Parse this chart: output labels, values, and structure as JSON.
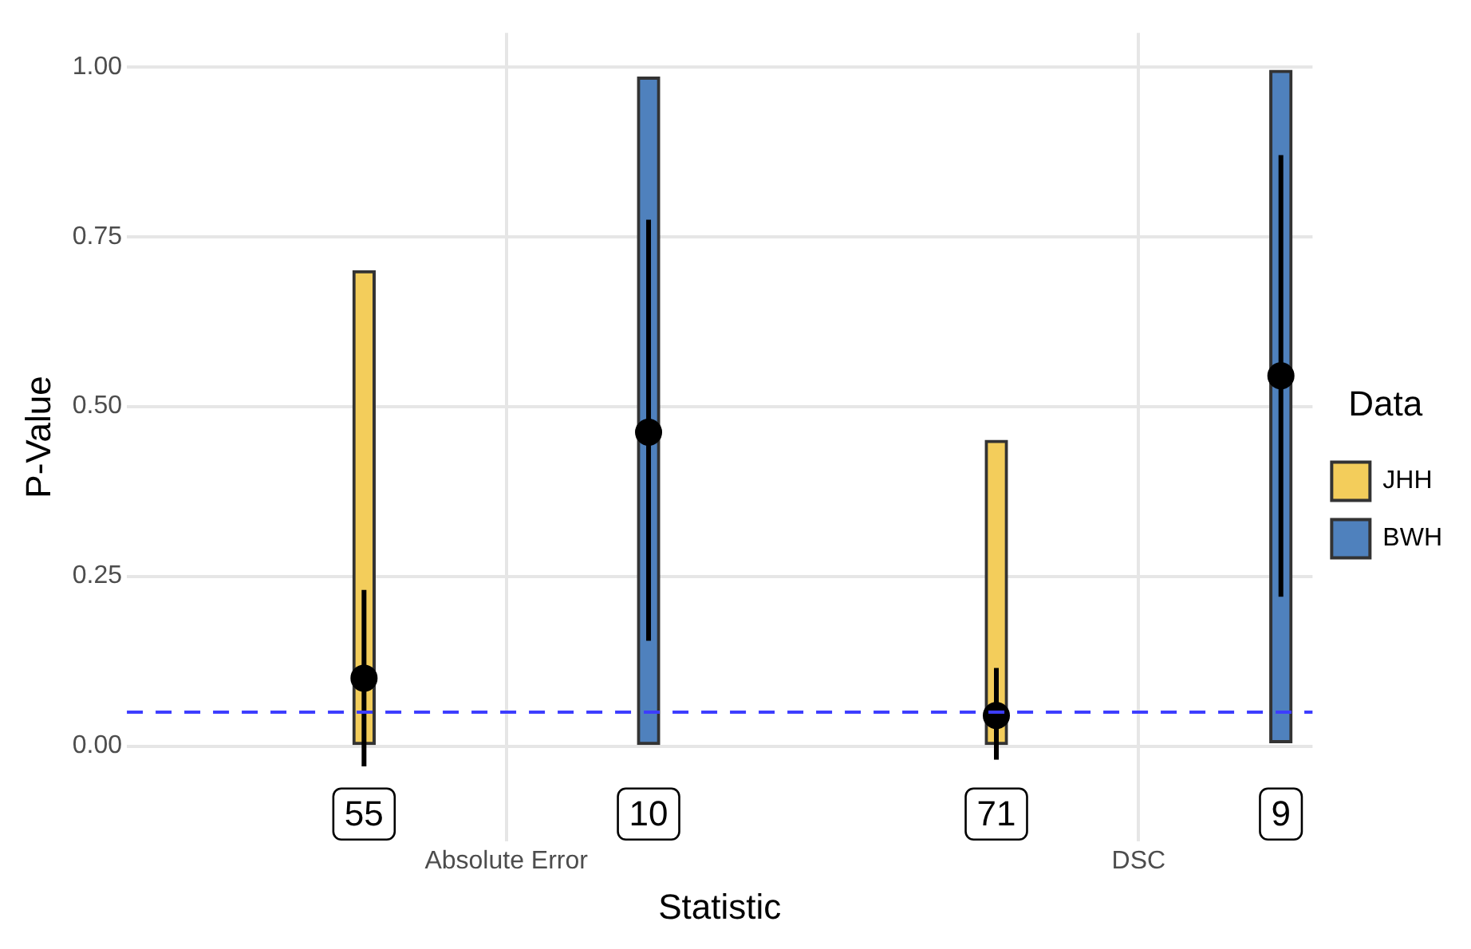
{
  "chart_data": {
    "type": "bar",
    "xlabel": "Statistic",
    "ylabel": "P-Value",
    "legend_title": "Data",
    "legend": "right",
    "grid": true,
    "categories": [
      "Absolute Error",
      "DSC"
    ],
    "ylim": [
      -0.14,
      1.05
    ],
    "yticks": [
      {
        "value": 0,
        "label": "0.00"
      },
      {
        "value": 0.25,
        "label": "0.25"
      },
      {
        "value": 0.5,
        "label": "0.50"
      },
      {
        "value": 0.75,
        "label": "0.75"
      },
      {
        "value": 1,
        "label": "1.00"
      }
    ],
    "series": [
      {
        "name": "JHH",
        "color": "#f3cd5b",
        "base": [
          0,
          0
        ],
        "values": [
          0.7,
          0.45
        ]
      },
      {
        "name": "BWH",
        "color": "#4f81bd",
        "base": [
          0,
          0.005
        ],
        "values": [
          0.985,
          0.99
        ]
      },
      {
        "type": "scatter",
        "color": "#000000",
        "values": [
          0.1,
          0.045
        ],
        "errors": [
          [
            -0.03,
            0.23
          ],
          [
            -0.02,
            0.115
          ]
        ]
      },
      {
        "type": "scatter",
        "color": "#000000",
        "values": [
          0.462,
          0.545
        ],
        "errors": [
          [
            0.155,
            0.775
          ],
          [
            0.22,
            0.87
          ]
        ]
      }
    ],
    "ref_lines": [
      {
        "axis": "y",
        "value": 0.05,
        "color": "#3d3dff",
        "line_style": "dashed"
      }
    ],
    "annotations": [
      "55",
      "10",
      "71",
      "9"
    ]
  }
}
